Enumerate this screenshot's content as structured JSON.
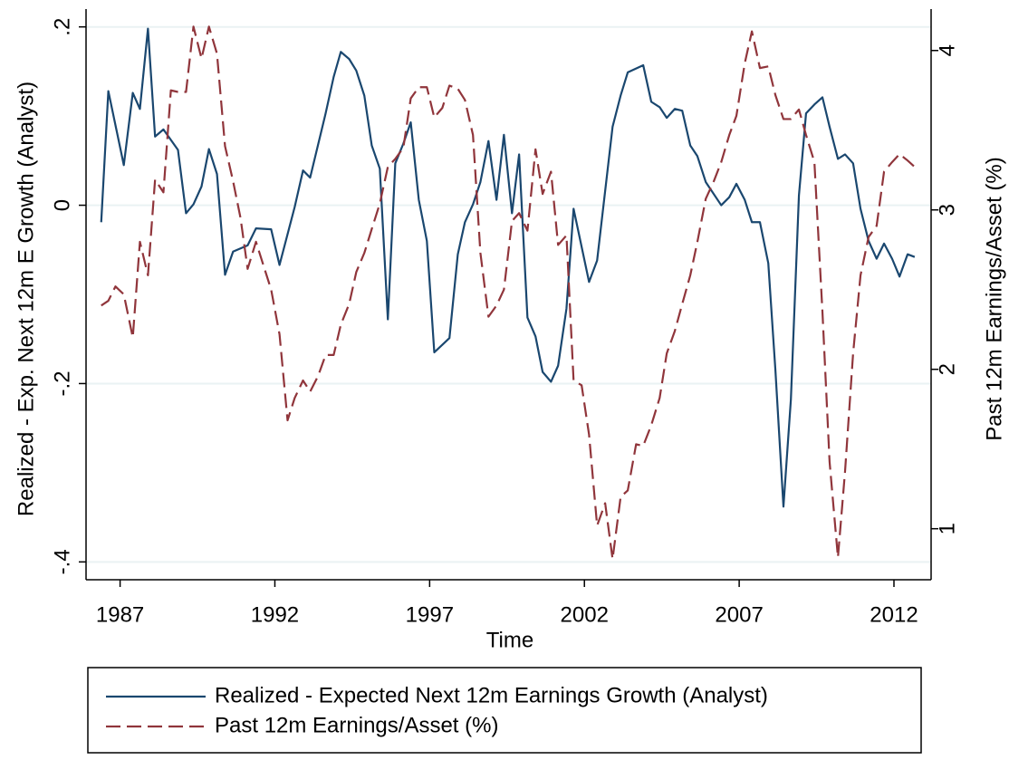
{
  "chart_data": {
    "type": "line",
    "x_label": "Time",
    "y_label": "Realized - Exp. Next 12m E Growth (Analyst)",
    "y2_label": "Past 12m Earnings/Asset (%)",
    "xlim": [
      1985.9,
      2013.2
    ],
    "xticks": [
      1987,
      1992,
      1997,
      2002,
      2007,
      2012
    ],
    "ylim": [
      -0.42,
      0.22
    ],
    "yticks": [
      {
        "value": -0.4,
        "label": "-.4"
      },
      {
        "value": -0.2,
        "label": "-.2"
      },
      0,
      {
        "value": 0.2,
        "label": ".2"
      }
    ],
    "y2lim": [
      0.68,
      4.26
    ],
    "y2ticks": [
      1,
      2,
      3,
      4
    ],
    "grid": true,
    "legend": "bottom",
    "series": [
      {
        "name": "Realized - Expected Next 12m Earnings Growth (Analyst)",
        "color": "#1a476f",
        "dash": "solid",
        "axis": "y",
        "x": [
          1986.39,
          1986.62,
          1987.12,
          1987.41,
          1987.64,
          1987.9,
          1988.13,
          1988.4,
          1988.87,
          1989.13,
          1989.37,
          1989.63,
          1989.87,
          1990.13,
          1990.39,
          1990.65,
          1991.12,
          1991.39,
          1991.88,
          1992.15,
          1992.64,
          1992.91,
          1993.14,
          1993.64,
          1993.9,
          1994.13,
          1994.4,
          1994.63,
          1994.89,
          1995.13,
          1995.39,
          1995.65,
          1995.89,
          1996.15,
          1996.39,
          1996.65,
          1996.91,
          1997.15,
          1997.64,
          1997.91,
          1998.14,
          1998.4,
          1998.64,
          1998.9,
          1999.16,
          1999.4,
          1999.66,
          1999.89,
          2000.16,
          2000.42,
          2000.65,
          2000.92,
          2001.15,
          2001.42,
          2001.65,
          2002.15,
          2002.41,
          2002.91,
          2003.17,
          2003.4,
          2003.9,
          2004.16,
          2004.43,
          2004.66,
          2004.92,
          2005.16,
          2005.42,
          2005.65,
          2005.92,
          2006.42,
          2006.68,
          2006.91,
          2007.18,
          2007.41,
          2007.67,
          2007.94,
          2008.17,
          2008.43,
          2008.67,
          2008.93,
          2009.16,
          2009.43,
          2009.69,
          2009.92,
          2010.19,
          2010.42,
          2010.68,
          2010.92,
          2011.18,
          2011.44,
          2011.68,
          2011.94,
          2012.18,
          2012.44,
          2012.67
        ],
        "values": [
          -0.019,
          0.128,
          0.045,
          0.126,
          0.108,
          0.198,
          0.077,
          0.085,
          0.062,
          -0.009,
          0.001,
          0.021,
          0.063,
          0.035,
          -0.078,
          -0.052,
          -0.045,
          -0.026,
          -0.027,
          -0.067,
          -0.002,
          0.039,
          0.031,
          0.103,
          0.144,
          0.172,
          0.164,
          0.151,
          0.123,
          0.067,
          0.041,
          -0.128,
          0.047,
          0.069,
          0.093,
          0.006,
          -0.04,
          -0.165,
          -0.149,
          -0.055,
          -0.019,
          0.001,
          0.026,
          0.072,
          0.006,
          0.079,
          -0.009,
          0.057,
          -0.126,
          -0.147,
          -0.187,
          -0.198,
          -0.18,
          -0.116,
          -0.004,
          -0.086,
          -0.062,
          0.088,
          0.123,
          0.149,
          0.157,
          0.116,
          0.11,
          0.098,
          0.108,
          0.106,
          0.067,
          0.055,
          0.026,
          0,
          0.009,
          0.024,
          0.006,
          -0.019,
          -0.019,
          -0.065,
          -0.185,
          -0.338,
          -0.218,
          0.011,
          0.103,
          0.113,
          0.121,
          0.088,
          0.052,
          0.057,
          0.047,
          -0.004,
          -0.04,
          -0.06,
          -0.043,
          -0.06,
          -0.08,
          -0.055,
          -0.058
        ]
      },
      {
        "name": "Past 12m Earnings/Asset (%)",
        "color": "#90353b",
        "dash": "dashed",
        "axis": "y2",
        "x": [
          1986.39,
          1986.62,
          1986.85,
          1987.12,
          1987.41,
          1987.64,
          1987.9,
          1988.13,
          1988.4,
          1988.64,
          1988.87,
          1989.13,
          1989.37,
          1989.63,
          1989.87,
          1990.13,
          1990.39,
          1990.65,
          1990.89,
          1991.12,
          1991.39,
          1991.65,
          1991.88,
          1992.15,
          1992.41,
          1992.64,
          1992.91,
          1993.14,
          1993.4,
          1993.64,
          1993.9,
          1994.13,
          1994.4,
          1994.63,
          1994.89,
          1995.13,
          1995.39,
          1995.65,
          1995.89,
          1996.15,
          1996.39,
          1996.65,
          1996.91,
          1997.15,
          1997.41,
          1997.64,
          1997.91,
          1998.14,
          1998.4,
          1998.64,
          1998.9,
          1999.16,
          1999.4,
          1999.66,
          1999.89,
          2000.16,
          2000.42,
          2000.65,
          2000.92,
          2001.15,
          2001.42,
          2001.65,
          2001.91,
          2002.15,
          2002.41,
          2002.67,
          2002.91,
          2003.17,
          2003.4,
          2003.67,
          2003.9,
          2004.16,
          2004.43,
          2004.66,
          2004.92,
          2005.16,
          2005.42,
          2005.65,
          2005.92,
          2006.18,
          2006.42,
          2006.68,
          2006.91,
          2007.18,
          2007.41,
          2007.67,
          2007.94,
          2008.17,
          2008.43,
          2008.67,
          2008.93,
          2009.16,
          2009.43,
          2009.69,
          2009.92,
          2010.19,
          2010.42,
          2010.68,
          2010.92,
          2011.18,
          2011.44,
          2011.68,
          2011.94,
          2012.18,
          2012.44,
          2012.67
        ],
        "values": [
          2.4,
          2.43,
          2.52,
          2.47,
          2.2,
          2.8,
          2.59,
          3.19,
          3.11,
          3.75,
          3.74,
          3.74,
          4.15,
          3.95,
          4.15,
          3.98,
          3.4,
          3.18,
          2.95,
          2.63,
          2.8,
          2.64,
          2.5,
          2.22,
          1.68,
          1.82,
          1.93,
          1.86,
          1.96,
          2.09,
          2.09,
          2.28,
          2.41,
          2.61,
          2.73,
          2.88,
          3.04,
          3.27,
          3.32,
          3.39,
          3.7,
          3.77,
          3.77,
          3.58,
          3.64,
          3.78,
          3.76,
          3.69,
          3.47,
          2.73,
          2.33,
          2.4,
          2.5,
          2.93,
          2.98,
          2.87,
          3.38,
          3.1,
          3.24,
          2.78,
          2.84,
          1.93,
          1.9,
          1.59,
          1.02,
          1.16,
          0.81,
          1.2,
          1.24,
          1.53,
          1.52,
          1.65,
          1.82,
          2.1,
          2.24,
          2.41,
          2.59,
          2.8,
          3.07,
          3.18,
          3.3,
          3.47,
          3.59,
          3.92,
          4.12,
          3.89,
          3.9,
          3.72,
          3.57,
          3.57,
          3.63,
          3.47,
          3.3,
          2.36,
          1.42,
          0.82,
          1.36,
          2.1,
          2.59,
          2.83,
          2.9,
          3.24,
          3.3,
          3.35,
          3.31,
          3.27
        ]
      }
    ]
  }
}
